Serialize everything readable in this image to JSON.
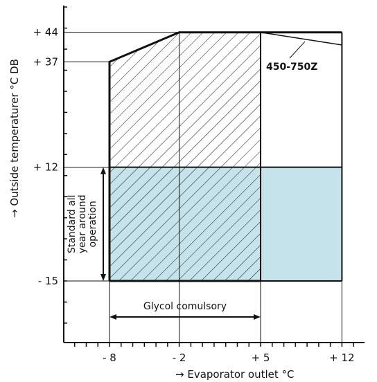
{
  "chart_data": {
    "type": "area",
    "title": "",
    "xlabel": "→ Evaporator outlet  °C",
    "ylabel": "→ Outside temperaturer  °C  DB",
    "x_tick_labels": [
      {
        "x": -8,
        "label": "- 8"
      },
      {
        "x": -2,
        "label": "- 2"
      },
      {
        "x": 5,
        "label": "+ 5"
      },
      {
        "x": 12,
        "label": "+ 12"
      }
    ],
    "y_tick_labels": [
      {
        "y": -15,
        "label": "- 15"
      },
      {
        "y": 12,
        "label": "+ 12"
      },
      {
        "y": 37,
        "label": "+ 37"
      },
      {
        "y": 44,
        "label": "+ 44"
      }
    ],
    "xlim": [
      -12,
      14.5
    ],
    "ylim": [
      -30,
      50
    ],
    "envelope_outline": [
      [
        -8,
        -15
      ],
      [
        -8,
        37
      ],
      [
        -2,
        44
      ],
      [
        12,
        44
      ]
    ],
    "model_curve": {
      "label": "450-750Z",
      "points": [
        [
          5,
          44
        ],
        [
          12,
          41
        ]
      ]
    },
    "regions": [
      {
        "name": "hatched",
        "pattern": "diagonal",
        "x": [
          -8,
          5
        ],
        "y": [
          -15,
          44
        ]
      },
      {
        "name": "shaded",
        "color": "#c5e3ea",
        "x": [
          -8,
          12
        ],
        "y": [
          -15,
          12
        ]
      }
    ],
    "annotations": {
      "standard_operation": [
        "Standard all",
        "year around",
        "operation"
      ],
      "glycol": "Glycol comulsory"
    },
    "colors": {
      "shade": "#c5e3ea",
      "ink": "#111111"
    }
  }
}
